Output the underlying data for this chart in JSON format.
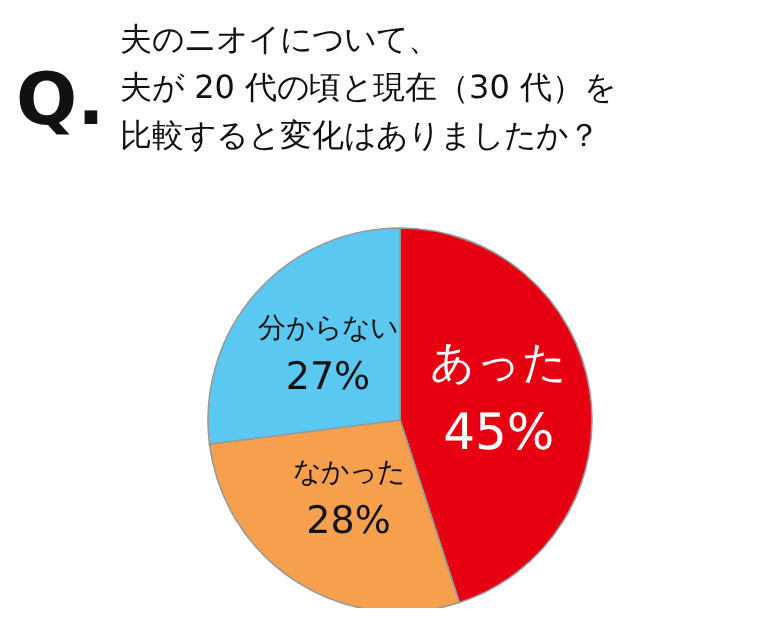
{
  "chart_data": {
    "type": "pie",
    "title": "夫のニオイについて、",
    "subtitle": "夫が 20 代の頃と現在（30 代）を比較すると変化はありましたか？",
    "annotations": [
      "Q."
    ],
    "categories": [
      "あった",
      "なかった",
      "分からない"
    ],
    "values": [
      45,
      28,
      27
    ],
    "colors": [
      "#e60012",
      "#f6a04d",
      "#5ac8f0"
    ],
    "value_labels": [
      "45%",
      "28%",
      "27%"
    ],
    "legend": false
  }
}
